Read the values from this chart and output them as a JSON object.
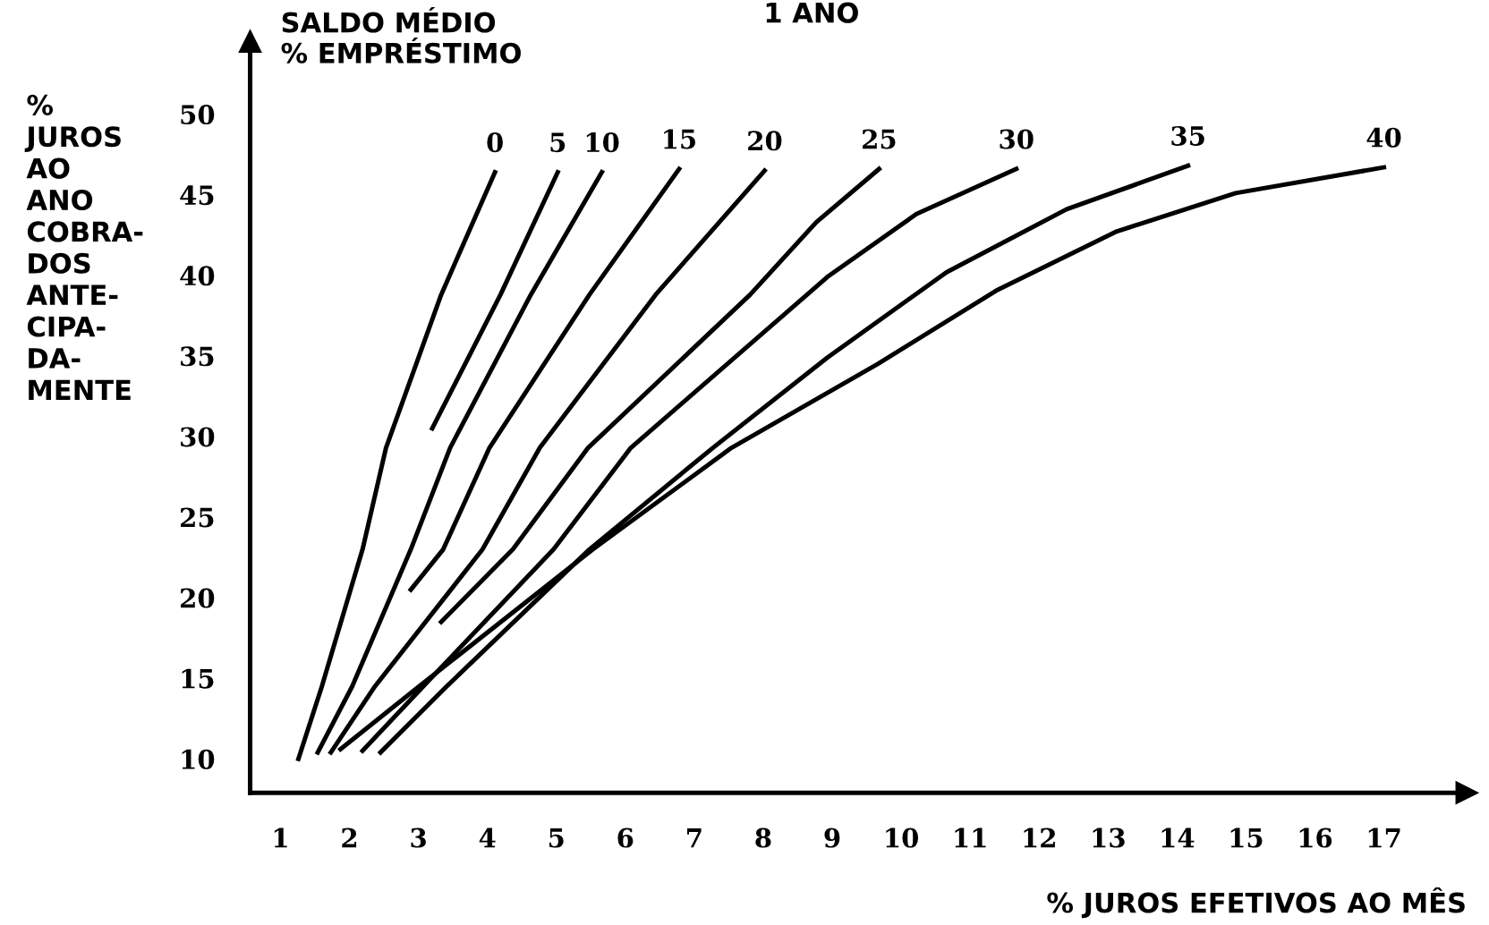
{
  "chart_data": {
    "type": "line",
    "title": "1 ANO",
    "legend_title": "SALDO MÉDIO\n% EMPRÉSTIMO",
    "xlabel": "% JUROS EFETIVOS AO MÊS",
    "ylabel": "%\nJUROS\nAO\nANO\nCOBRA-\nDOS\nANTE-\nCIPA-\nDA-\nMENTE",
    "xlim": [
      0.56,
      18.2
    ],
    "ylim": [
      7.9,
      54.5
    ],
    "xticks": [
      1,
      2,
      3,
      4,
      5,
      6,
      7,
      8,
      9,
      10,
      11,
      12,
      13,
      14,
      15,
      16,
      17
    ],
    "yticks": [
      10,
      15,
      20,
      25,
      30,
      35,
      40,
      45,
      50
    ],
    "grid": false,
    "legend": false,
    "marker": "none",
    "line_style": "solid",
    "series": [
      {
        "name": "0",
        "color": "#000000",
        "x": [
          1.26,
          1.6,
          2.19,
          2.53,
          3.33,
          4.11
        ],
        "values": [
          10.0,
          14.5,
          23.0,
          29.3,
          38.8,
          46.4
        ]
      },
      {
        "name": "5",
        "color": "#000000",
        "x": [
          3.2,
          4.19,
          5.02
        ],
        "values": [
          30.5,
          38.8,
          46.4
        ]
      },
      {
        "name": "10",
        "color": "#000000",
        "x": [
          1.54,
          2.04,
          2.89,
          3.46,
          4.63,
          5.66
        ],
        "values": [
          10.4,
          14.5,
          23.0,
          29.3,
          38.8,
          46.4
        ]
      },
      {
        "name": "15",
        "color": "#000000",
        "x": [
          2.89,
          3.36,
          4.03,
          5.48,
          6.78
        ],
        "values": [
          20.5,
          23.0,
          29.3,
          38.8,
          46.6
        ]
      },
      {
        "name": "20",
        "color": "#000000",
        "x": [
          1.73,
          2.37,
          3.93,
          4.76,
          6.44,
          8.02
        ],
        "values": [
          10.4,
          14.5,
          23.0,
          29.3,
          38.8,
          46.5
        ]
      },
      {
        "name": "25",
        "color": "#000000",
        "x": [
          3.33,
          4.37,
          5.46,
          7.81,
          8.77,
          9.68
        ],
        "values": [
          18.5,
          23.0,
          29.3,
          38.8,
          43.3,
          46.6
        ]
      },
      {
        "name": "30",
        "color": "#000000",
        "x": [
          2.19,
          3.07,
          4.96,
          6.08,
          8.93,
          10.22,
          11.67
        ],
        "values": [
          10.5,
          14.5,
          23.0,
          29.3,
          39.9,
          43.8,
          46.6
        ]
      },
      {
        "name": "35",
        "color": "#000000",
        "x": [
          2.45,
          3.41,
          5.48,
          7.27,
          8.93,
          10.66,
          12.4,
          14.16
        ],
        "values": [
          10.4,
          14.5,
          23.0,
          29.3,
          34.9,
          40.2,
          44.1,
          46.8
        ]
      },
      {
        "name": "40",
        "color": "#000000",
        "x": [
          1.87,
          3.01,
          5.53,
          7.54,
          9.66,
          11.4,
          13.11,
          14.85,
          17.0
        ],
        "values": [
          10.6,
          14.5,
          23.0,
          29.3,
          34.5,
          39.1,
          42.7,
          45.1,
          46.7
        ]
      }
    ]
  }
}
